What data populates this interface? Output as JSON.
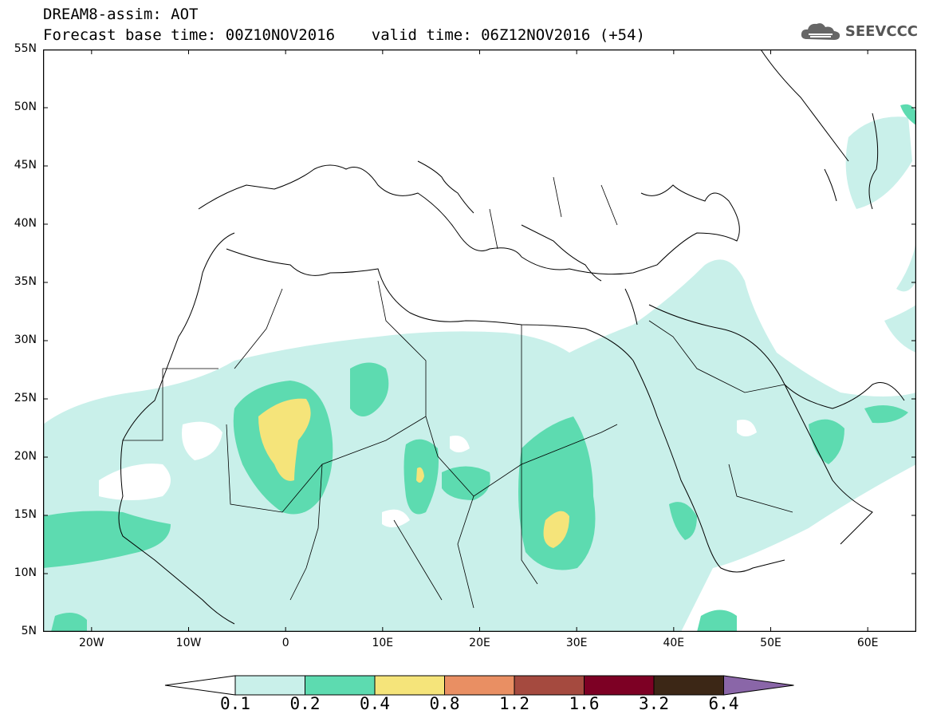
{
  "header": {
    "title_line1": "DREAM8-assim: AOT",
    "title_line2": "Forecast base time: 00Z10NOV2016    valid time: 06Z12NOV2016 (+54)",
    "brand": "SEEVCCC",
    "brand_icon": "cloud-logo-icon"
  },
  "axes": {
    "lat_labels": [
      "55N",
      "50N",
      "45N",
      "40N",
      "35N",
      "30N",
      "25N",
      "20N",
      "15N",
      "10N",
      "5N"
    ],
    "lon_labels": [
      "20W",
      "10W",
      "0",
      "10E",
      "20E",
      "30E",
      "40E",
      "50E",
      "60E"
    ]
  },
  "colorbar": {
    "labels": [
      "0.1",
      "0.2",
      "0.4",
      "0.8",
      "1.2",
      "1.6",
      "3.2",
      "6.4"
    ],
    "colors": [
      "#c9f0ea",
      "#5ddbb0",
      "#f5e47a",
      "#e98f63",
      "#a54a3f",
      "#7d0024",
      "#3c2716",
      "#8a66a8"
    ]
  },
  "map": {
    "extent": {
      "lon": [
        -25,
        65
      ],
      "lat": [
        5,
        55
      ]
    },
    "palette": {
      "low": "#c9f0ea",
      "mid": "#5ddbb0",
      "high": "#f5e47a"
    }
  }
}
